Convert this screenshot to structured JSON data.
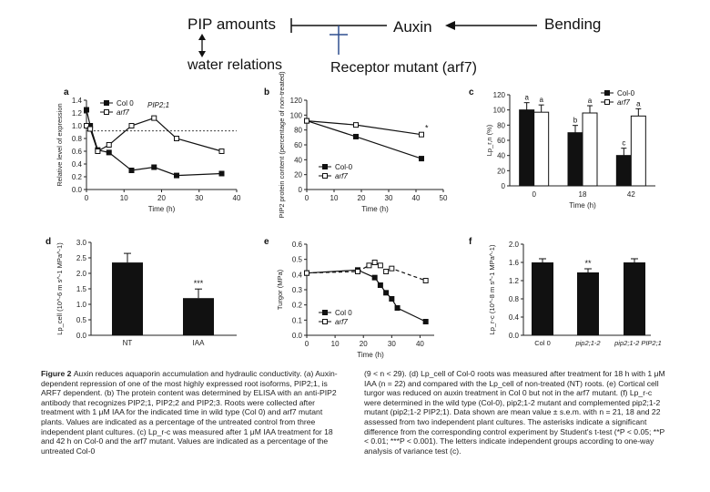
{
  "diagram": {
    "pip_amounts": "PIP amounts",
    "auxin": "Auxin",
    "bending": "Bending",
    "water_relations": "water relations",
    "receptor_mutant": "Receptor mutant (arf7)"
  },
  "panels": {
    "a": {
      "letter": "a",
      "gene": "PIP2;1",
      "ylabel": "Relative level of expression",
      "xlabel": "Time (h)",
      "xticks": [
        "0",
        "10",
        "20",
        "30",
        "40"
      ],
      "yticks": [
        "0.0",
        "0.2",
        "0.4",
        "0.6",
        "0.8",
        "1.0",
        "1.2",
        "1.4"
      ],
      "legend": [
        "Col 0",
        "arf7"
      ],
      "chart_data": {
        "type": "line",
        "xlim": [
          0,
          40
        ],
        "ylim": [
          0,
          1.4
        ],
        "series": [
          {
            "name": "Col 0",
            "marker": "filled",
            "x": [
              0,
              1,
              3,
              6,
              12,
              18,
              24,
              36
            ],
            "y": [
              1.25,
              1.0,
              0.62,
              0.58,
              0.3,
              0.35,
              0.22,
              0.25
            ]
          },
          {
            "name": "arf7",
            "marker": "open",
            "x": [
              0,
              1,
              3,
              6,
              12,
              18,
              24,
              36
            ],
            "y": [
              1.0,
              0.95,
              0.6,
              0.7,
              1.0,
              1.12,
              0.8,
              0.6
            ]
          }
        ],
        "reference_line": 0.92
      }
    },
    "b": {
      "letter": "b",
      "ylabel": "PIP2 protein content (percentage of non-treated)",
      "xlabel": "Time (h)",
      "xticks": [
        "0",
        "10",
        "20",
        "30",
        "40",
        "50"
      ],
      "yticks": [
        "0",
        "20",
        "40",
        "60",
        "80",
        "100",
        "120"
      ],
      "legend": [
        "Col-0",
        "arf7"
      ],
      "annotation": "*",
      "chart_data": {
        "type": "line",
        "xlim": [
          0,
          50
        ],
        "ylim": [
          0,
          130
        ],
        "series": [
          {
            "name": "Col-0",
            "marker": "filled",
            "x": [
              0,
              18,
              42
            ],
            "y": [
              100,
              77,
              45
            ]
          },
          {
            "name": "arf7",
            "marker": "open",
            "x": [
              0,
              18,
              42
            ],
            "y": [
              100,
              94,
              80
            ]
          }
        ]
      }
    },
    "c": {
      "letter": "c",
      "ylabel": "Lp_r,n (%)",
      "xlabel": "Time (h)",
      "xticks": [
        "0",
        "18",
        "42"
      ],
      "yticks": [
        "0",
        "20",
        "40",
        "60",
        "80",
        "100",
        "120"
      ],
      "legend": [
        "Col-0",
        "arf7"
      ],
      "bar_letters": [
        "a",
        "a",
        "b",
        "a",
        "c",
        "a"
      ],
      "chart_data": {
        "type": "bar",
        "categories": [
          "0",
          "18",
          "42"
        ],
        "ylim": [
          0,
          120
        ],
        "series": [
          {
            "name": "Col-0",
            "values": [
              100,
              70,
              40
            ]
          },
          {
            "name": "arf7",
            "values": [
              97,
              96,
              92
            ]
          }
        ]
      }
    },
    "d": {
      "letter": "d",
      "ylabel": "Lp_cell (10^-6 m s^-1 MPa^-1)",
      "xticks": [
        "NT",
        "IAA"
      ],
      "yticks": [
        "0.0",
        "0.5",
        "1.0",
        "1.5",
        "2.0",
        "2.5",
        "3.0"
      ],
      "annotation": "***",
      "chart_data": {
        "type": "bar",
        "categories": [
          "NT",
          "IAA"
        ],
        "ylim": [
          0,
          3.0
        ],
        "values": [
          2.35,
          1.2
        ]
      }
    },
    "e": {
      "letter": "e",
      "ylabel": "Turgor (MPa)",
      "xlabel": "Time (h)",
      "xticks": [
        "0",
        "10",
        "20",
        "30",
        "40"
      ],
      "yticks": [
        "0.0",
        "0.1",
        "0.2",
        "0.3",
        "0.4",
        "0.5",
        "0.6"
      ],
      "legend": [
        "Col 0",
        "arf7"
      ],
      "chart_data": {
        "type": "line",
        "xlim": [
          0,
          45
        ],
        "ylim": [
          0,
          0.6
        ],
        "series": [
          {
            "name": "Col 0",
            "marker": "filled",
            "x": [
              0,
              18,
              24,
              26,
              28,
              30,
              32,
              42
            ],
            "y": [
              0.41,
              0.43,
              0.38,
              0.33,
              0.28,
              0.24,
              0.18,
              0.09
            ]
          },
          {
            "name": "arf7",
            "marker": "open",
            "x": [
              0,
              18,
              22,
              24,
              26,
              28,
              30,
              42
            ],
            "y": [
              0.41,
              0.42,
              0.46,
              0.48,
              0.46,
              0.42,
              0.44,
              0.36
            ]
          }
        ]
      }
    },
    "f": {
      "letter": "f",
      "ylabel": "Lp_r-c (10^-8 m s^-1 MPa^-1)",
      "xticks": [
        "Col 0",
        "pip2;1-2",
        "pip2;1-2 PIP2;1"
      ],
      "yticks": [
        "0.0",
        "0.4",
        "0.8",
        "1.2",
        "1.6",
        "2.0"
      ],
      "annotation": "**",
      "chart_data": {
        "type": "bar",
        "categories": [
          "Col 0",
          "pip2;1-2",
          "pip2;1-2 PIP2;1"
        ],
        "ylim": [
          0,
          2.0
        ],
        "values": [
          1.6,
          1.38,
          1.6
        ]
      }
    }
  },
  "caption": {
    "label": "Figure 2",
    "left": "Auxin reduces aquaporin accumulation and hydraulic conductivity. (a) Auxin-dependent repression of one of the most highly expressed root isoforms, PIP2;1, is ARF7 dependent. (b) The protein content was determined by ELISA with an anti-PIP2 antibody that recognizes PIP2;1, PIP2;2 and PIP2;3. Roots were collected after treatment with 1 μM IAA for the indicated time in wild type (Col 0) and arf7 mutant plants. Values are indicated as a percentage of the untreated control from three independent plant cultures. (c) Lp_r-c was measured after 1 μM IAA treatment for 18 and 42 h on Col-0 and the arf7 mutant. Values are indicated as a percentage of the untreated Col-0",
    "right": "(9 < n < 29). (d) Lp_cell of Col-0 roots was measured after treatment for 18 h with 1 μM IAA (n = 22) and compared with the Lp_cell of non-treated (NT) roots. (e) Cortical cell turgor was reduced on auxin treatment in Col 0 but not in the arf7 mutant. (f) Lp_r-c were determined in the wild type (Col-0), pip2;1-2 mutant and complemented pip2;1-2 mutant (pip2;1-2 PIP2;1). Data shown are mean value ± s.e.m. with n = 21, 18 and 22 assessed from two independent plant cultures. The asterisks indicate a significant difference from the corresponding control experiment by Student's t-test (*P < 0.05; **P < 0.01; ***P < 0.001). The letters indicate independent groups according to one-way analysis of variance test (c)."
  }
}
